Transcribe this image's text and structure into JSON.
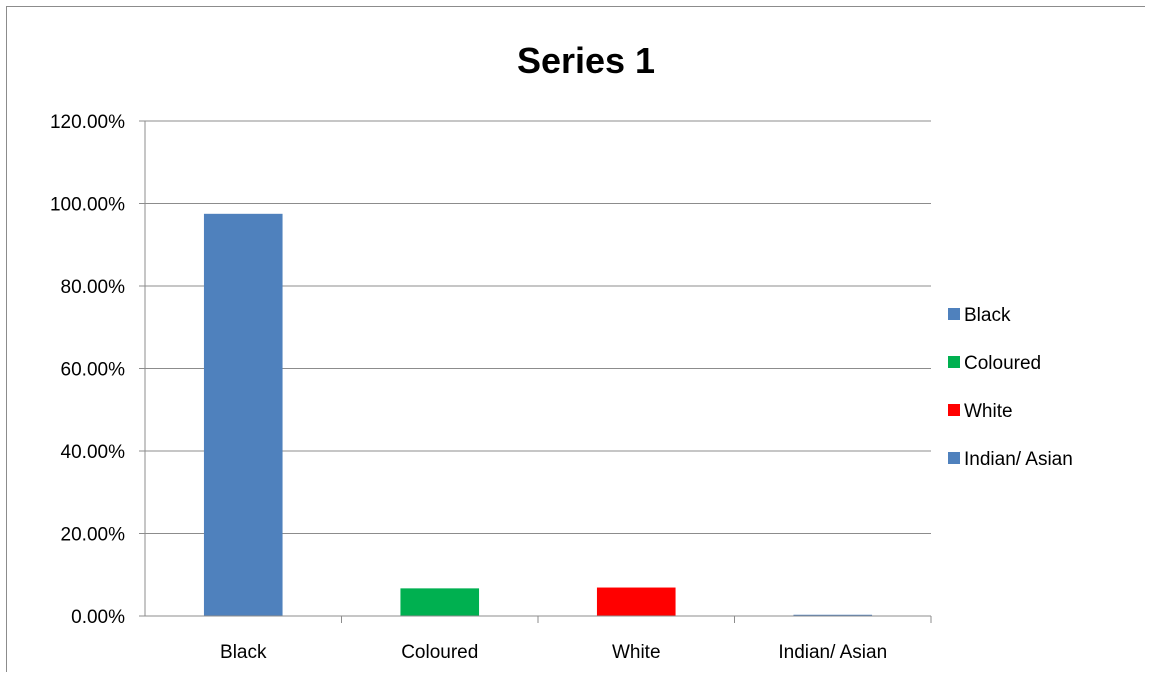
{
  "chart_data": {
    "type": "bar",
    "title": "Series 1",
    "xlabel": "",
    "ylabel": "",
    "categories": [
      "Black",
      "Coloured",
      "White",
      "Indian/ Asian"
    ],
    "series": [
      {
        "values": [
          97.5,
          6.7,
          6.9,
          0.3
        ]
      }
    ],
    "ylim": [
      0,
      120
    ],
    "y_ticks": [
      "0.00%",
      "20.00%",
      "40.00%",
      "60.00%",
      "80.00%",
      "100.00%",
      "120.00%"
    ],
    "grid": true,
    "legend": {
      "position": "right",
      "entries": [
        {
          "label": "Black",
          "color": "#4F81BD"
        },
        {
          "label": "Coloured",
          "color": "#00B050"
        },
        {
          "label": "White",
          "color": "#FF0000"
        },
        {
          "label": "Indian/ Asian",
          "color": "#4F81BD"
        }
      ]
    },
    "colors": [
      "#4F81BD",
      "#00B050",
      "#FF0000",
      "#4F81BD"
    ],
    "gridline_color": "#8C8C8C"
  }
}
